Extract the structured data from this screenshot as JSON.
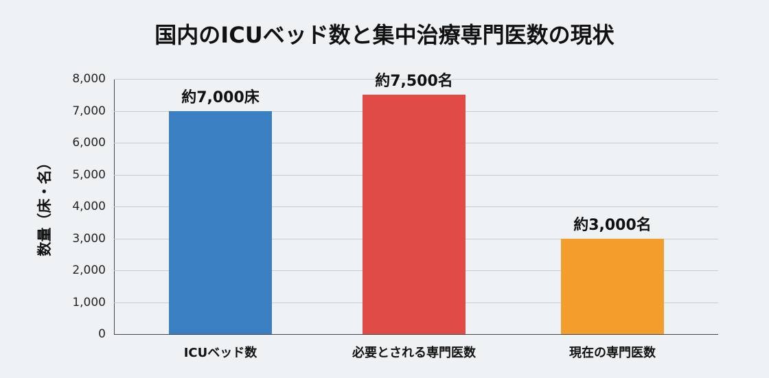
{
  "chart_data": {
    "type": "bar",
    "title": "国内のICUベッド数と集中治療専門医数の現状",
    "xlabel": "",
    "ylabel": "数量（床・名）",
    "ylim": [
      0,
      8000
    ],
    "yticks": [
      "0",
      "1,000",
      "2,000",
      "3,000",
      "4,000",
      "5,000",
      "6,000",
      "7,000",
      "8,000"
    ],
    "grid": true,
    "legend": "none",
    "categories": [
      "ICUベッド数",
      "必要とされる専門医数",
      "現在の専門医数"
    ],
    "values": [
      7000,
      7500,
      3000
    ],
    "data_labels": [
      "約7,000床",
      "約7,500名",
      "約3,000名"
    ],
    "colors": [
      "#3a7fc1",
      "#e04a47",
      "#f29d2c"
    ]
  }
}
